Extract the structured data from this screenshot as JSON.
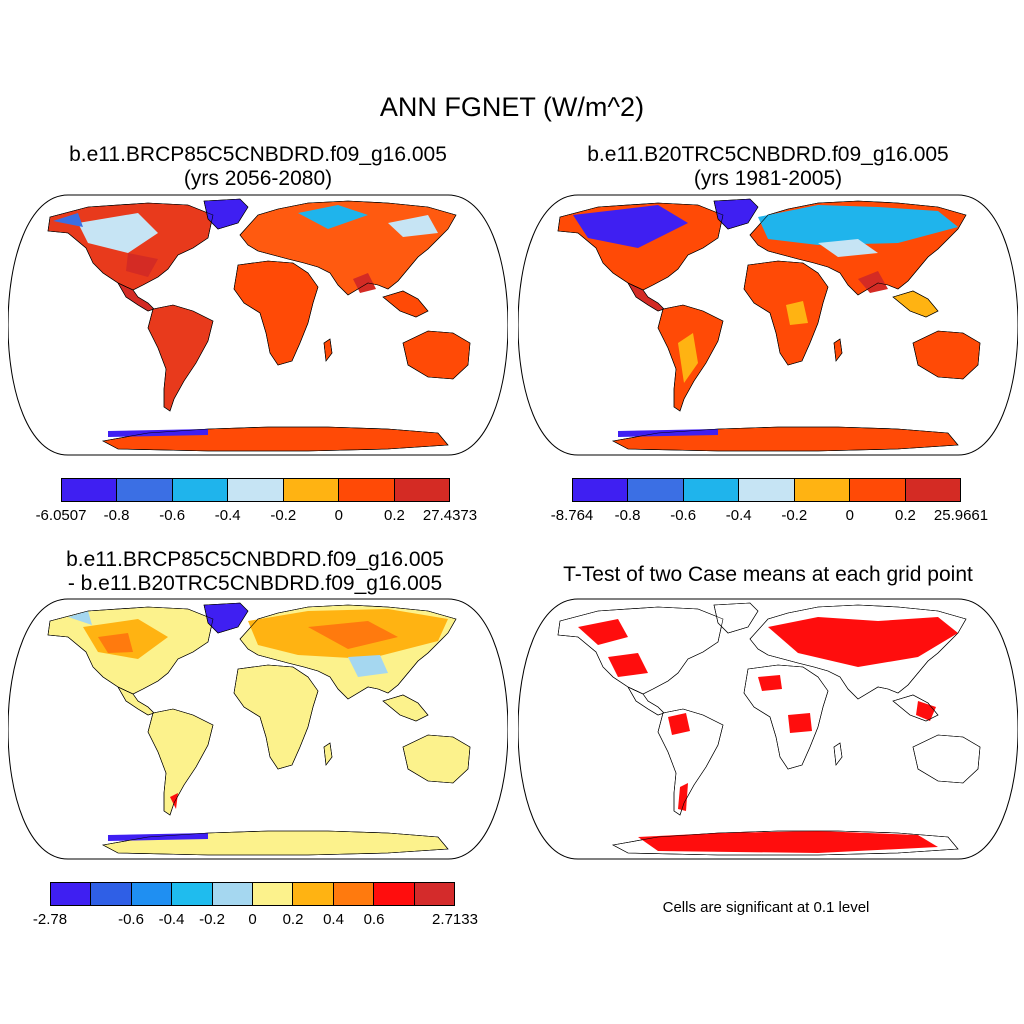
{
  "title": "ANN FGNET (W/m^2)",
  "panels": [
    {
      "title_line1": "b.e11.BRCP85C5CNBDRD.f09_g16.005",
      "title_line2": "(yrs 2056-2080)",
      "colorbar": {
        "colors": [
          "#3f1ff2",
          "#3b6fe4",
          "#1fb4ec",
          "#c6e4f4",
          "#ffb312",
          "#ff4a06",
          "#d42b24"
        ],
        "labels": [
          "-6.0507",
          "-0.8",
          "-0.6",
          "-0.4",
          "-0.2",
          "0",
          "0.2",
          "27.4373"
        ]
      }
    },
    {
      "title_line1": "b.e11.B20TRC5CNBDRD.f09_g16.005",
      "title_line2": "(yrs 1981-2005)",
      "colorbar": {
        "colors": [
          "#3f1ff2",
          "#3b6fe4",
          "#1fb4ec",
          "#c6e4f4",
          "#ffb312",
          "#ff4a06",
          "#d42b24"
        ],
        "labels": [
          "-8.764",
          "-0.8",
          "-0.6",
          "-0.4",
          "-0.2",
          "0",
          "0.2",
          "25.9661"
        ]
      }
    },
    {
      "title_line1": "b.e11.BRCP85C5CNBDRD.f09_g16.005",
      "title_line2": "- b.e11.B20TRC5CNBDRD.f09_g16.005",
      "colorbar": {
        "colors": [
          "#3f1ff2",
          "#2f5fe6",
          "#1f8ff2",
          "#1fbcee",
          "#a5d7f0",
          "#fcf28c",
          "#ffb312",
          "#ff7a0e",
          "#ff0d0d",
          "#d42b2b"
        ],
        "labels": [
          "-2.78",
          "",
          "-0.6",
          "-0.4",
          "-0.2",
          "0",
          "0.2",
          "0.4",
          "0.6",
          "",
          "2.7133"
        ]
      }
    },
    {
      "title_line1": "T-Test of two Case means at each grid point",
      "note": "Cells are significant at 0.1 level"
    }
  ]
}
